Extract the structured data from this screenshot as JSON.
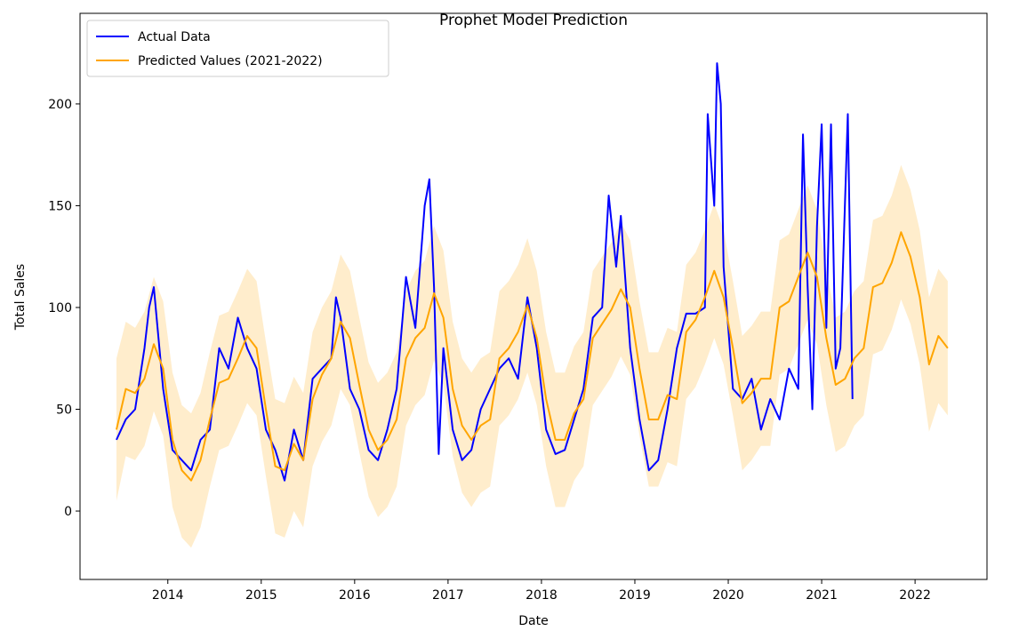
{
  "chart_data": {
    "type": "line",
    "title": "Prophet Model Prediction",
    "x_label": "Date",
    "y_label": "Total Sales",
    "xlim": [
      2013.06,
      2022.77
    ],
    "ylim": [
      -33.6,
      244.5
    ],
    "xticks": [
      2014,
      2015,
      2016,
      2017,
      2018,
      2019,
      2020,
      2021,
      2022
    ],
    "yticks": [
      0,
      50,
      100,
      150,
      200
    ],
    "legend": "upper left",
    "band_color": "#ffa500",
    "series": [
      {
        "name": "Actual Data",
        "color": "#0000ff",
        "x": [
          2013.45,
          2013.55,
          2013.65,
          2013.75,
          2013.8,
          2013.85,
          2013.95,
          2014.05,
          2014.15,
          2014.25,
          2014.35,
          2014.45,
          2014.55,
          2014.65,
          2014.75,
          2014.85,
          2014.95,
          2015.05,
          2015.15,
          2015.25,
          2015.35,
          2015.45,
          2015.55,
          2015.65,
          2015.75,
          2015.8,
          2015.85,
          2015.95,
          2016.05,
          2016.15,
          2016.25,
          2016.35,
          2016.45,
          2016.55,
          2016.65,
          2016.75,
          2016.8,
          2016.85,
          2016.9,
          2016.95,
          2017.05,
          2017.15,
          2017.25,
          2017.35,
          2017.45,
          2017.55,
          2017.65,
          2017.75,
          2017.85,
          2017.95,
          2018.05,
          2018.15,
          2018.25,
          2018.35,
          2018.45,
          2018.55,
          2018.65,
          2018.72,
          2018.8,
          2018.85,
          2018.95,
          2019.05,
          2019.15,
          2019.25,
          2019.35,
          2019.45,
          2019.55,
          2019.65,
          2019.75,
          2019.78,
          2019.85,
          2019.88,
          2019.92,
          2019.95,
          2020.05,
          2020.15,
          2020.25,
          2020.35,
          2020.45,
          2020.55,
          2020.65,
          2020.75,
          2020.8,
          2020.85,
          2020.9,
          2020.95,
          2021.0,
          2021.05,
          2021.1,
          2021.15,
          2021.2,
          2021.28,
          2021.33
        ],
        "values": [
          35,
          45,
          50,
          80,
          100,
          110,
          60,
          30,
          25,
          20,
          35,
          40,
          80,
          70,
          95,
          80,
          70,
          40,
          30,
          15,
          40,
          25,
          65,
          70,
          75,
          105,
          95,
          60,
          50,
          30,
          25,
          40,
          60,
          115,
          90,
          150,
          163,
          110,
          28,
          80,
          40,
          25,
          30,
          50,
          60,
          70,
          75,
          65,
          105,
          80,
          40,
          28,
          30,
          45,
          60,
          95,
          100,
          155,
          120,
          145,
          80,
          45,
          20,
          25,
          50,
          80,
          97,
          97,
          100,
          195,
          150,
          220,
          200,
          120,
          60,
          55,
          65,
          40,
          55,
          45,
          70,
          60,
          185,
          110,
          50,
          140,
          190,
          90,
          190,
          70,
          80,
          195,
          55
        ]
      },
      {
        "name": "Predicted Values (2021-2022)",
        "color": "#ffa500",
        "x": [
          2013.45,
          2013.55,
          2013.65,
          2013.75,
          2013.85,
          2013.95,
          2014.05,
          2014.15,
          2014.25,
          2014.35,
          2014.45,
          2014.55,
          2014.65,
          2014.75,
          2014.85,
          2014.95,
          2015.05,
          2015.15,
          2015.25,
          2015.35,
          2015.45,
          2015.55,
          2015.65,
          2015.75,
          2015.85,
          2015.95,
          2016.05,
          2016.15,
          2016.25,
          2016.35,
          2016.45,
          2016.55,
          2016.65,
          2016.75,
          2016.85,
          2016.95,
          2017.05,
          2017.15,
          2017.25,
          2017.35,
          2017.45,
          2017.55,
          2017.65,
          2017.75,
          2017.85,
          2017.95,
          2018.05,
          2018.15,
          2018.25,
          2018.35,
          2018.45,
          2018.55,
          2018.65,
          2018.75,
          2018.85,
          2018.95,
          2019.05,
          2019.15,
          2019.25,
          2019.35,
          2019.45,
          2019.55,
          2019.65,
          2019.75,
          2019.85,
          2019.95,
          2020.05,
          2020.15,
          2020.25,
          2020.35,
          2020.45,
          2020.55,
          2020.65,
          2020.75,
          2020.85,
          2020.95,
          2021.05,
          2021.15,
          2021.25,
          2021.35,
          2021.45,
          2021.55,
          2021.65,
          2021.75,
          2021.85,
          2021.95,
          2022.05,
          2022.15,
          2022.25,
          2022.35
        ],
        "values": [
          40,
          60,
          58,
          65,
          82,
          70,
          35,
          20,
          15,
          25,
          45,
          63,
          65,
          75,
          86,
          80,
          50,
          22,
          20,
          33,
          25,
          55,
          67,
          75,
          93,
          85,
          62,
          40,
          30,
          35,
          45,
          75,
          85,
          90,
          107,
          95,
          60,
          42,
          35,
          42,
          45,
          75,
          80,
          88,
          101,
          85,
          55,
          35,
          35,
          48,
          55,
          85,
          92,
          99,
          109,
          100,
          70,
          45,
          45,
          57,
          55,
          88,
          94,
          105,
          118,
          105,
          80,
          53,
          58,
          65,
          65,
          100,
          103,
          115,
          127,
          115,
          85,
          62,
          65,
          75,
          80,
          110,
          112,
          122,
          137,
          125,
          105,
          72,
          86,
          80
        ],
        "upper": [
          75,
          93,
          90,
          98,
          115,
          103,
          68,
          52,
          48,
          58,
          78,
          96,
          98,
          108,
          119,
          113,
          83,
          55,
          53,
          66,
          58,
          88,
          100,
          108,
          126,
          118,
          95,
          73,
          63,
          68,
          78,
          108,
          118,
          123,
          140,
          128,
          93,
          75,
          68,
          75,
          78,
          108,
          113,
          121,
          134,
          118,
          88,
          68,
          68,
          81,
          88,
          118,
          125,
          132,
          142,
          133,
          103,
          78,
          78,
          90,
          88,
          121,
          127,
          138,
          151,
          138,
          113,
          86,
          91,
          98,
          98,
          133,
          136,
          148,
          160,
          148,
          118,
          95,
          98,
          108,
          113,
          143,
          145,
          155,
          170,
          158,
          138,
          105,
          119,
          113
        ],
        "lower": [
          5,
          27,
          25,
          32,
          49,
          37,
          2,
          -13,
          -18,
          -8,
          12,
          30,
          32,
          42,
          53,
          47,
          17,
          -11,
          -13,
          0,
          -8,
          22,
          34,
          42,
          60,
          52,
          29,
          7,
          -3,
          2,
          12,
          42,
          52,
          57,
          74,
          62,
          27,
          9,
          2,
          9,
          12,
          42,
          47,
          55,
          68,
          52,
          22,
          2,
          2,
          15,
          22,
          52,
          59,
          66,
          76,
          67,
          37,
          12,
          12,
          24,
          22,
          55,
          61,
          72,
          85,
          72,
          47,
          20,
          25,
          32,
          32,
          67,
          70,
          82,
          94,
          82,
          52,
          29,
          32,
          42,
          47,
          77,
          79,
          89,
          104,
          92,
          72,
          39,
          53,
          47
        ]
      }
    ]
  }
}
